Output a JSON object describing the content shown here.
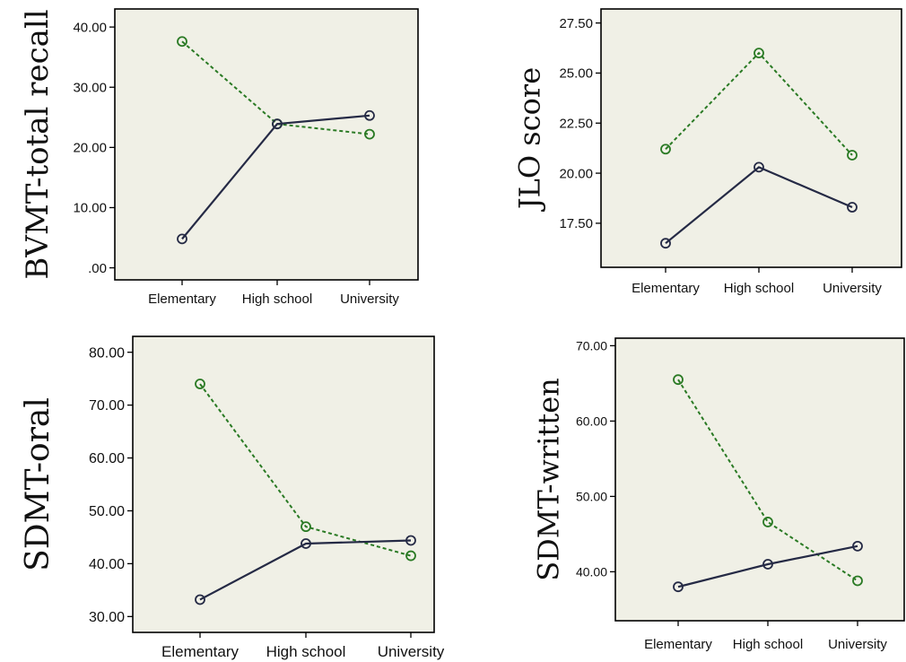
{
  "colors": {
    "panel_bg": "#f0f0e6",
    "solid_series": "#252a45",
    "dashed_series": "#2a7a24"
  },
  "chart_data": [
    {
      "type": "line",
      "ylabel": "BVMT-total recall",
      "categories": [
        "Elementary",
        "High school",
        "University"
      ],
      "ytick_labels": [
        ".00",
        "10.00",
        "20.00",
        "30.00",
        "40.00"
      ],
      "ylim": [
        -2,
        43
      ],
      "grid": false,
      "series": [
        {
          "style": "solid",
          "values": [
            4.8,
            23.9,
            25.3
          ]
        },
        {
          "style": "dashed",
          "values": [
            37.6,
            23.9,
            22.2
          ]
        }
      ]
    },
    {
      "type": "line",
      "ylabel": "JLO score",
      "categories": [
        "Elementary",
        "High school",
        "University"
      ],
      "ytick_labels": [
        "17.50",
        "20.00",
        "22.50",
        "25.00",
        "27.50"
      ],
      "ylim": [
        15.3,
        28.2
      ],
      "grid": false,
      "series": [
        {
          "style": "solid",
          "values": [
            16.5,
            20.3,
            18.3
          ]
        },
        {
          "style": "dashed",
          "values": [
            21.2,
            26.0,
            20.9
          ]
        }
      ]
    },
    {
      "type": "line",
      "ylabel": "SDMT-oral",
      "categories": [
        "Elementary",
        "High school",
        "University"
      ],
      "ytick_labels": [
        "30.00",
        "40.00",
        "50.00",
        "60.00",
        "70.00",
        "80.00"
      ],
      "ylim": [
        27,
        83
      ],
      "grid": false,
      "series": [
        {
          "style": "solid",
          "values": [
            33.2,
            43.8,
            44.4
          ]
        },
        {
          "style": "dashed",
          "values": [
            74.0,
            47.0,
            41.5
          ]
        }
      ]
    },
    {
      "type": "line",
      "ylabel": "SDMT-written",
      "categories": [
        "Elementary",
        "High school",
        "University"
      ],
      "ytick_labels": [
        "40.00",
        "50.00",
        "60.00",
        "70.00"
      ],
      "ylim": [
        33.5,
        71
      ],
      "grid": false,
      "series": [
        {
          "style": "solid",
          "values": [
            38.0,
            41.0,
            43.4
          ]
        },
        {
          "style": "dashed",
          "values": [
            65.5,
            46.6,
            38.8
          ]
        }
      ]
    }
  ]
}
